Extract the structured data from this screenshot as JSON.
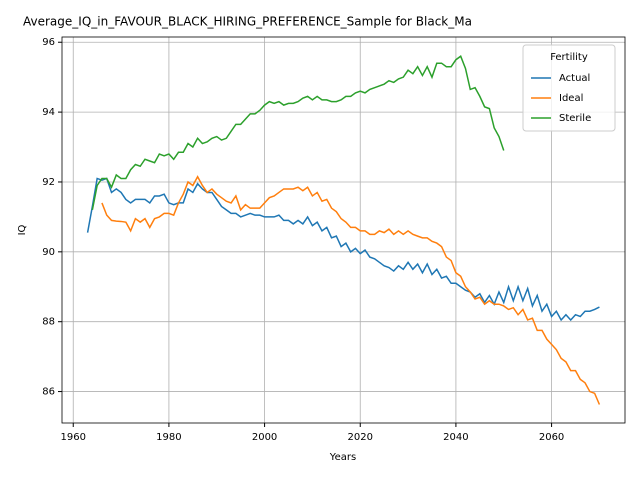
{
  "chart_data": {
    "type": "line",
    "title": "Average_IQ_in_FAVOUR_BLACK_HIRING_PREFERENCE_Sample for Black_Ma",
    "xlabel": "Years",
    "ylabel": "IQ",
    "legend_title": "Fertility",
    "legend": "upper right",
    "grid": true,
    "xlim": [
      1957.65,
      2075.35
    ],
    "xticks": [
      1960,
      1980,
      2000,
      2020,
      2040,
      2060
    ],
    "ylim": [
      85.1,
      96.15
    ],
    "yticks": [
      86,
      88,
      90,
      92,
      94,
      96
    ],
    "x": [
      1963,
      1964,
      1965,
      1966,
      1967,
      1968,
      1969,
      1970,
      1971,
      1972,
      1973,
      1974,
      1975,
      1976,
      1977,
      1978,
      1979,
      1980,
      1981,
      1982,
      1983,
      1984,
      1985,
      1986,
      1987,
      1988,
      1989,
      1990,
      1991,
      1992,
      1993,
      1994,
      1995,
      1996,
      1997,
      1998,
      1999,
      2000,
      2001,
      2002,
      2003,
      2004,
      2005,
      2006,
      2007,
      2008,
      2009,
      2010,
      2011,
      2012,
      2013,
      2014,
      2015,
      2016,
      2017,
      2018,
      2019,
      2020,
      2021,
      2022,
      2023,
      2024,
      2025,
      2026,
      2027,
      2028,
      2029,
      2030,
      2031,
      2032,
      2033,
      2034,
      2035,
      2036,
      2037,
      2038,
      2039,
      2040,
      2041,
      2042,
      2043,
      2044,
      2045,
      2046,
      2047,
      2048,
      2049,
      2050,
      2051,
      2052,
      2053,
      2054,
      2055,
      2056,
      2057,
      2058,
      2059,
      2060,
      2061,
      2062,
      2063,
      2064,
      2065,
      2066,
      2067,
      2068,
      2069,
      2070
    ],
    "series": [
      {
        "name": "Actual",
        "color": "#1f77b4",
        "values": [
          90.55,
          91.3,
          92.1,
          92.05,
          92.1,
          91.7,
          91.8,
          91.7,
          91.5,
          91.4,
          91.5,
          91.5,
          91.5,
          91.4,
          91.6,
          91.6,
          91.65,
          91.4,
          91.35,
          91.4,
          91.4,
          91.8,
          91.7,
          91.95,
          91.8,
          91.7,
          91.7,
          91.5,
          91.3,
          91.2,
          91.1,
          91.1,
          91.0,
          91.05,
          91.1,
          91.05,
          91.05,
          91.0,
          91.0,
          91.0,
          91.05,
          90.9,
          90.9,
          90.8,
          90.9,
          90.8,
          91.0,
          90.75,
          90.85,
          90.6,
          90.7,
          90.4,
          90.45,
          90.15,
          90.25,
          90.0,
          90.1,
          89.95,
          90.05,
          89.85,
          89.8,
          89.7,
          89.6,
          89.55,
          89.45,
          89.6,
          89.5,
          89.7,
          89.5,
          89.65,
          89.4,
          89.65,
          89.35,
          89.5,
          89.25,
          89.3,
          89.1,
          89.1,
          89.0,
          88.9,
          88.85,
          88.7,
          88.8,
          88.55,
          88.75,
          88.5,
          88.85,
          88.55,
          89.0,
          88.6,
          89.0,
          88.6,
          88.95,
          88.45,
          88.75,
          88.3,
          88.5,
          88.15,
          88.3,
          88.05,
          88.2,
          88.05,
          88.2,
          88.15,
          88.3,
          88.3,
          88.35,
          88.42
        ]
      },
      {
        "name": "Ideal",
        "color": "#ff7f0e",
        "values": [
          null,
          null,
          null,
          91.4,
          91.05,
          90.9,
          90.88,
          90.87,
          90.85,
          90.6,
          90.95,
          90.85,
          90.95,
          90.7,
          90.95,
          91.0,
          91.1,
          91.1,
          91.05,
          91.4,
          91.65,
          92.0,
          91.9,
          92.15,
          91.9,
          91.7,
          91.8,
          91.65,
          91.55,
          91.45,
          91.4,
          91.6,
          91.2,
          91.35,
          91.25,
          91.25,
          91.25,
          91.4,
          91.55,
          91.6,
          91.7,
          91.8,
          91.8,
          91.8,
          91.85,
          91.75,
          91.85,
          91.6,
          91.7,
          91.45,
          91.5,
          91.25,
          91.15,
          90.95,
          90.85,
          90.7,
          90.7,
          90.6,
          90.6,
          90.5,
          90.5,
          90.6,
          90.55,
          90.65,
          90.5,
          90.6,
          90.5,
          90.6,
          90.5,
          90.45,
          90.4,
          90.4,
          90.3,
          90.25,
          90.15,
          89.85,
          89.75,
          89.4,
          89.3,
          89.0,
          88.85,
          88.65,
          88.7,
          88.5,
          88.6,
          88.5,
          88.5,
          88.45,
          88.35,
          88.4,
          88.2,
          88.35,
          88.05,
          88.1,
          87.75,
          87.75,
          87.5,
          87.35,
          87.2,
          86.95,
          86.85,
          86.6,
          86.6,
          86.35,
          86.25,
          86.0,
          85.95,
          85.63
        ]
      },
      {
        "name": "Sterile",
        "color": "#2ca02c",
        "values": [
          null,
          91.2,
          91.9,
          92.1,
          92.1,
          91.85,
          92.2,
          92.1,
          92.1,
          92.35,
          92.5,
          92.45,
          92.65,
          92.6,
          92.55,
          92.8,
          92.75,
          92.8,
          92.65,
          92.85,
          92.85,
          93.1,
          93.0,
          93.25,
          93.1,
          93.15,
          93.25,
          93.3,
          93.2,
          93.25,
          93.45,
          93.65,
          93.65,
          93.8,
          93.95,
          93.95,
          94.05,
          94.2,
          94.3,
          94.25,
          94.3,
          94.2,
          94.25,
          94.25,
          94.3,
          94.4,
          94.45,
          94.35,
          94.45,
          94.35,
          94.35,
          94.3,
          94.3,
          94.35,
          94.45,
          94.45,
          94.55,
          94.6,
          94.55,
          94.65,
          94.7,
          94.75,
          94.8,
          94.9,
          94.85,
          94.95,
          95.0,
          95.2,
          95.1,
          95.3,
          95.05,
          95.3,
          95.0,
          95.4,
          95.4,
          95.3,
          95.3,
          95.5,
          95.6,
          95.25,
          94.65,
          94.7,
          94.45,
          94.15,
          94.1,
          93.55,
          93.3,
          92.9,
          null,
          null,
          null,
          null,
          null,
          null,
          null,
          null,
          null,
          null,
          null,
          null,
          null,
          null,
          null,
          null,
          null,
          null,
          null,
          null
        ]
      }
    ]
  }
}
